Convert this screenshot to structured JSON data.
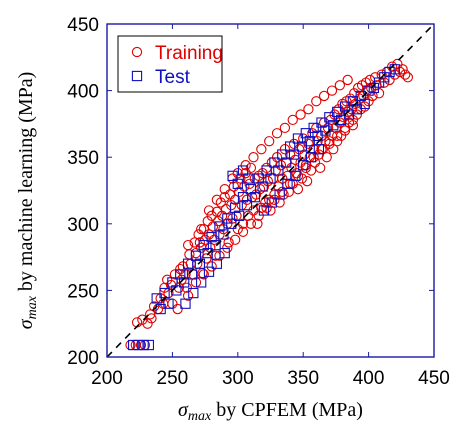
{
  "chart_data": {
    "type": "scatter",
    "title": "",
    "xlabel": {
      "symbol": "σ",
      "subscript": "max",
      "text": " by CPFEM (MPa)"
    },
    "ylabel": {
      "symbol": "σ",
      "subscript": "max",
      "text": " by machine learning (MPa)"
    },
    "xlim": [
      200,
      450
    ],
    "ylim": [
      200,
      450
    ],
    "xticks": [
      200,
      250,
      300,
      350,
      400,
      450
    ],
    "yticks": [
      200,
      250,
      300,
      350,
      400,
      450
    ],
    "grid": false,
    "legend_position": "top-left",
    "reference_line": {
      "style": "dashed",
      "color": "#000000",
      "from": [
        200,
        200
      ],
      "to": [
        450,
        450
      ]
    },
    "series": [
      {
        "name": "Training",
        "marker": "circle",
        "color": "#e00000",
        "points": [
          [
            218,
            209
          ],
          [
            222,
            209
          ],
          [
            226,
            209
          ],
          [
            229,
            209
          ],
          [
            223,
            226
          ],
          [
            227,
            228
          ],
          [
            231,
            225
          ],
          [
            234,
            229
          ],
          [
            236,
            238
          ],
          [
            239,
            236
          ],
          [
            233,
            232
          ],
          [
            241,
            244
          ],
          [
            244,
            252
          ],
          [
            243,
            240
          ],
          [
            247,
            248
          ],
          [
            246,
            258
          ],
          [
            249,
            254
          ],
          [
            250,
            240
          ],
          [
            252,
            262
          ],
          [
            254,
            236
          ],
          [
            255,
            252
          ],
          [
            256,
            266
          ],
          [
            257,
            258
          ],
          [
            258,
            268
          ],
          [
            260,
            262
          ],
          [
            261,
            252
          ],
          [
            263,
            277
          ],
          [
            262,
            284
          ],
          [
            264,
            270
          ],
          [
            266,
            262
          ],
          [
            267,
            286
          ],
          [
            268,
            278
          ],
          [
            269,
            270
          ],
          [
            270,
            292
          ],
          [
            271,
            286
          ],
          [
            272,
            282
          ],
          [
            273,
            263
          ],
          [
            274,
            296
          ],
          [
            275,
            288
          ],
          [
            276,
            274
          ],
          [
            277,
            302
          ],
          [
            278,
            292
          ],
          [
            279,
            282
          ],
          [
            280,
            306
          ],
          [
            281,
            298
          ],
          [
            282,
            288
          ],
          [
            283,
            276
          ],
          [
            284,
            309
          ],
          [
            285,
            302
          ],
          [
            286,
            292
          ],
          [
            287,
            316
          ],
          [
            288,
            306
          ],
          [
            289,
            296
          ],
          [
            290,
            320
          ],
          [
            291,
            311
          ],
          [
            292,
            300
          ],
          [
            293,
            286
          ],
          [
            294,
            322
          ],
          [
            295,
            314
          ],
          [
            296,
            304
          ],
          [
            297,
            328
          ],
          [
            298,
            318
          ],
          [
            299,
            306
          ],
          [
            300,
            296
          ],
          [
            301,
            324
          ],
          [
            302,
            334
          ],
          [
            303,
            314
          ],
          [
            304,
            300
          ],
          [
            305,
            328
          ],
          [
            306,
            338
          ],
          [
            307,
            318
          ],
          [
            308,
            306
          ],
          [
            309,
            330
          ],
          [
            310,
            342
          ],
          [
            311,
            320
          ],
          [
            312,
            310
          ],
          [
            313,
            334
          ],
          [
            314,
            322
          ],
          [
            315,
            300
          ],
          [
            316,
            336
          ],
          [
            317,
            326
          ],
          [
            318,
            312
          ],
          [
            319,
            338
          ],
          [
            320,
            328
          ],
          [
            321,
            316
          ],
          [
            322,
            342
          ],
          [
            323,
            332
          ],
          [
            324,
            318
          ],
          [
            325,
            310
          ],
          [
            326,
            346
          ],
          [
            327,
            334
          ],
          [
            328,
            322
          ],
          [
            329,
            340
          ],
          [
            330,
            350
          ],
          [
            331,
            328
          ],
          [
            332,
            316
          ],
          [
            333,
            344
          ],
          [
            334,
            334
          ],
          [
            335,
            322
          ],
          [
            336,
            356
          ],
          [
            337,
            346
          ],
          [
            338,
            336
          ],
          [
            339,
            324
          ],
          [
            340,
            352
          ],
          [
            341,
            342
          ],
          [
            342,
            330
          ],
          [
            343,
            360
          ],
          [
            344,
            348
          ],
          [
            345,
            338
          ],
          [
            346,
            326
          ],
          [
            347,
            356
          ],
          [
            348,
            346
          ],
          [
            349,
            334
          ],
          [
            350,
            364
          ],
          [
            351,
            352
          ],
          [
            352,
            342
          ],
          [
            353,
            332
          ],
          [
            354,
            360
          ],
          [
            355,
            350
          ],
          [
            356,
            340
          ],
          [
            357,
            368
          ],
          [
            358,
            356
          ],
          [
            359,
            346
          ],
          [
            360,
            372
          ],
          [
            361,
            362
          ],
          [
            362,
            352
          ],
          [
            363,
            342
          ],
          [
            364,
            366
          ],
          [
            365,
            356
          ],
          [
            366,
            376
          ],
          [
            367,
            362
          ],
          [
            368,
            350
          ],
          [
            369,
            372
          ],
          [
            370,
            362
          ],
          [
            371,
            378
          ],
          [
            372,
            366
          ],
          [
            373,
            356
          ],
          [
            374,
            382
          ],
          [
            375,
            372
          ],
          [
            376,
            362
          ],
          [
            377,
            386
          ],
          [
            378,
            376
          ],
          [
            379,
            366
          ],
          [
            380,
            390
          ],
          [
            381,
            380
          ],
          [
            382,
            372
          ],
          [
            383,
            392
          ],
          [
            384,
            384
          ],
          [
            385,
            376
          ],
          [
            386,
            394
          ],
          [
            387,
            386
          ],
          [
            388,
            378
          ],
          [
            389,
            398
          ],
          [
            390,
            390
          ],
          [
            391,
            382
          ],
          [
            392,
            402
          ],
          [
            393,
            394
          ],
          [
            394,
            386
          ],
          [
            395,
            404
          ],
          [
            396,
            396
          ],
          [
            397,
            388
          ],
          [
            398,
            406
          ],
          [
            399,
            400
          ],
          [
            400,
            392
          ],
          [
            401,
            408
          ],
          [
            402,
            402
          ],
          [
            403,
            396
          ],
          [
            405,
            410
          ],
          [
            406,
            404
          ],
          [
            408,
            398
          ],
          [
            410,
            412
          ],
          [
            412,
            406
          ],
          [
            414,
            414
          ],
          [
            416,
            408
          ],
          [
            418,
            418
          ],
          [
            420,
            412
          ],
          [
            422,
            420
          ],
          [
            424,
            414
          ],
          [
            426,
            416
          ],
          [
            428,
            412
          ],
          [
            430,
            410
          ],
          [
            272,
            296
          ],
          [
            278,
            310
          ],
          [
            284,
            318
          ],
          [
            290,
            326
          ],
          [
            296,
            334
          ],
          [
            300,
            338
          ],
          [
            306,
            344
          ],
          [
            312,
            350
          ],
          [
            318,
            356
          ],
          [
            324,
            362
          ],
          [
            330,
            368
          ],
          [
            336,
            372
          ],
          [
            342,
            378
          ],
          [
            348,
            382
          ],
          [
            354,
            386
          ],
          [
            360,
            392
          ],
          [
            366,
            396
          ],
          [
            372,
            400
          ],
          [
            378,
            404
          ],
          [
            384,
            408
          ],
          [
            262,
            246
          ],
          [
            268,
            256
          ],
          [
            274,
            262
          ],
          [
            280,
            268
          ],
          [
            286,
            276
          ],
          [
            292,
            282
          ],
          [
            298,
            288
          ],
          [
            304,
            294
          ],
          [
            310,
            300
          ],
          [
            316,
            306
          ],
          [
            322,
            312
          ],
          [
            328,
            318
          ],
          [
            334,
            324
          ],
          [
            340,
            330
          ],
          [
            346,
            336
          ],
          [
            352,
            344
          ],
          [
            358,
            350
          ],
          [
            364,
            356
          ],
          [
            370,
            360
          ],
          [
            376,
            366
          ],
          [
            382,
            370
          ],
          [
            388,
            374
          ]
        ]
      },
      {
        "name": "Test",
        "marker": "square",
        "color": "#1010c0",
        "points": [
          [
            220,
            209
          ],
          [
            224,
            209
          ],
          [
            228,
            209
          ],
          [
            232,
            209
          ],
          [
            238,
            244
          ],
          [
            241,
            236
          ],
          [
            244,
            248
          ],
          [
            247,
            240
          ],
          [
            250,
            256
          ],
          [
            253,
            250
          ],
          [
            256,
            262
          ],
          [
            259,
            256
          ],
          [
            262,
            270
          ],
          [
            265,
            262
          ],
          [
            268,
            276
          ],
          [
            271,
            270
          ],
          [
            274,
            284
          ],
          [
            277,
            278
          ],
          [
            280,
            290
          ],
          [
            283,
            284
          ],
          [
            286,
            298
          ],
          [
            289,
            292
          ],
          [
            292,
            304
          ],
          [
            295,
            300
          ],
          [
            298,
            312
          ],
          [
            301,
            306
          ],
          [
            304,
            320
          ],
          [
            307,
            314
          ],
          [
            310,
            326
          ],
          [
            313,
            320
          ],
          [
            316,
            334
          ],
          [
            319,
            328
          ],
          [
            322,
            340
          ],
          [
            325,
            334
          ],
          [
            328,
            346
          ],
          [
            331,
            340
          ],
          [
            334,
            352
          ],
          [
            337,
            346
          ],
          [
            340,
            358
          ],
          [
            343,
            352
          ],
          [
            346,
            364
          ],
          [
            349,
            358
          ],
          [
            352,
            368
          ],
          [
            355,
            362
          ],
          [
            358,
            372
          ],
          [
            361,
            366
          ],
          [
            364,
            376
          ],
          [
            367,
            370
          ],
          [
            370,
            380
          ],
          [
            373,
            374
          ],
          [
            376,
            384
          ],
          [
            379,
            378
          ],
          [
            382,
            388
          ],
          [
            385,
            382
          ],
          [
            388,
            392
          ],
          [
            391,
            386
          ],
          [
            394,
            396
          ],
          [
            397,
            390
          ],
          [
            400,
            400
          ],
          [
            404,
            402
          ],
          [
            408,
            406
          ],
          [
            412,
            410
          ],
          [
            416,
            414
          ],
          [
            420,
            416
          ],
          [
            296,
            336
          ],
          [
            300,
            330
          ],
          [
            304,
            340
          ],
          [
            308,
            334
          ],
          [
            260,
            240
          ],
          [
            266,
            248
          ],
          [
            272,
            256
          ],
          [
            278,
            264
          ],
          [
            284,
            270
          ],
          [
            290,
            278
          ],
          [
            320,
            310
          ],
          [
            326,
            316
          ],
          [
            332,
            322
          ],
          [
            338,
            330
          ],
          [
            344,
            336
          ],
          [
            350,
            344
          ],
          [
            356,
            350
          ],
          [
            362,
            356
          ]
        ]
      }
    ]
  }
}
